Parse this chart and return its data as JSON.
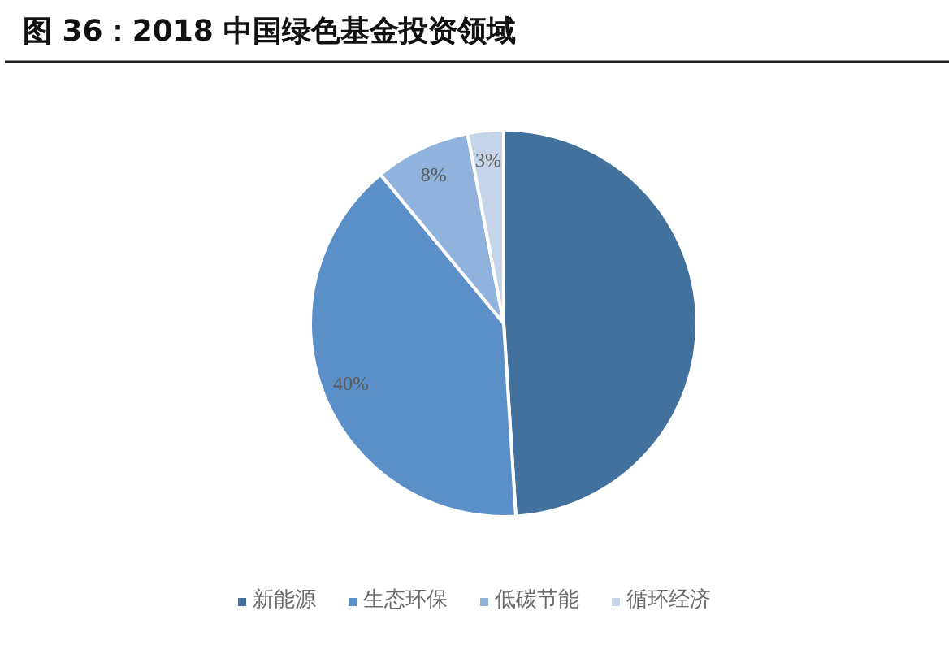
{
  "chart_data": {
    "type": "pie",
    "title": "图 36：2018 中国绿色基金投资领域",
    "categories": [
      "新能源",
      "生态环保",
      "低碳节能",
      "循环经济"
    ],
    "values": [
      49,
      40,
      8,
      3
    ],
    "colors": [
      "#41719c",
      "#5b8fc7",
      "#8fb3dc",
      "#c5d4e8"
    ],
    "value_labels": [
      null,
      "40%",
      "8%",
      "3%"
    ],
    "legend": "bottom"
  }
}
